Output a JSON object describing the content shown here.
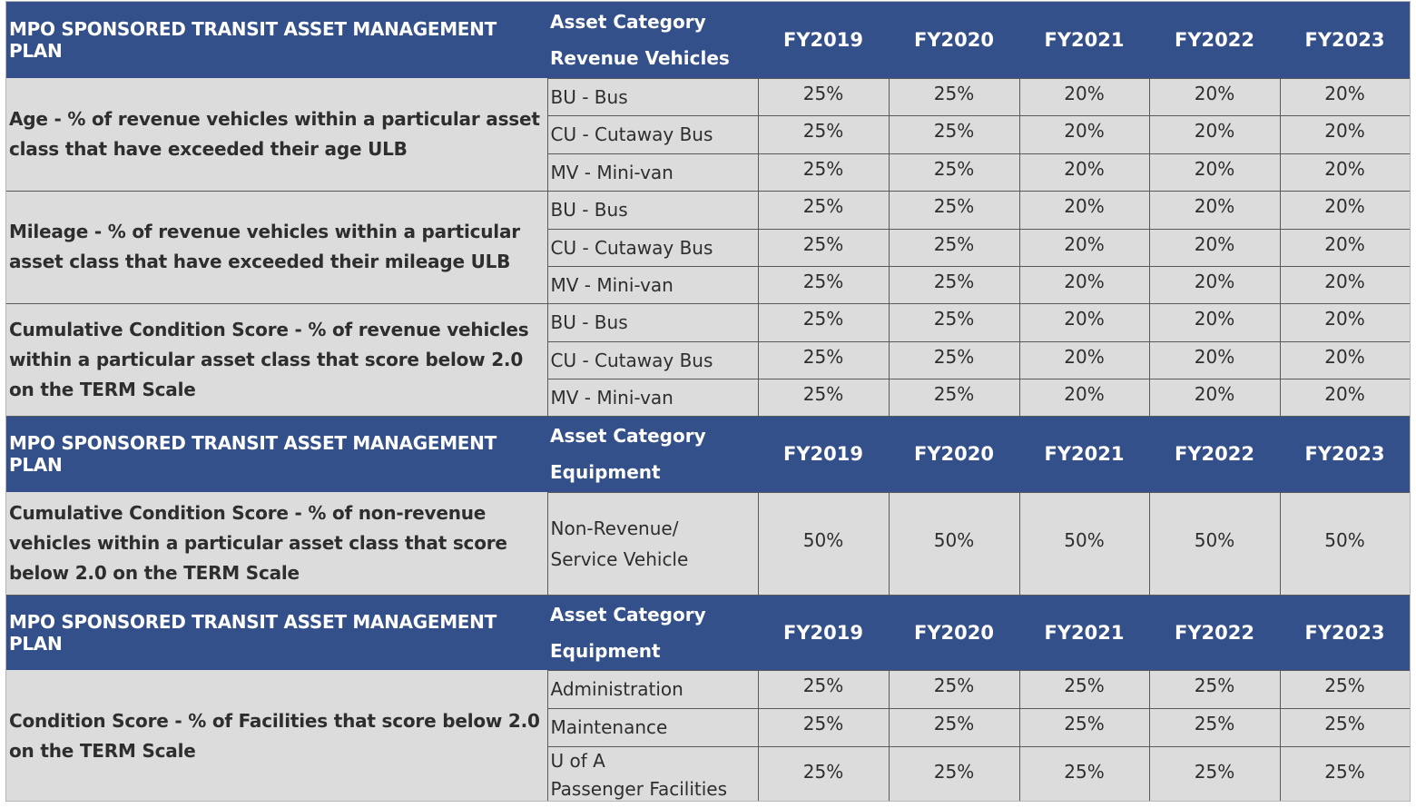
{
  "years": [
    "FY2019",
    "FY2020",
    "FY2021",
    "FY2022",
    "FY2023"
  ],
  "sections": [
    {
      "header": {
        "title": "MPO SPONSORED TRANSIT ASSET MANAGEMENT PLAN",
        "category_label": "Asset Category",
        "category_name": "Revenue Vehicles"
      },
      "groups": [
        {
          "metric": "Age - % of revenue vehicles within a particular asset class that have exceeded their age ULB",
          "rows": [
            {
              "label": "BU - Bus",
              "values": [
                "25%",
                "25%",
                "20%",
                "20%",
                "20%"
              ]
            },
            {
              "label": "CU - Cutaway Bus",
              "values": [
                "25%",
                "25%",
                "20%",
                "20%",
                "20%"
              ]
            },
            {
              "label": "MV - Mini-van",
              "values": [
                "25%",
                "25%",
                "20%",
                "20%",
                "20%"
              ]
            }
          ]
        },
        {
          "metric": "Mileage - % of revenue vehicles within a particular asset class that have exceeded their mileage ULB",
          "rows": [
            {
              "label": "BU - Bus",
              "values": [
                "25%",
                "25%",
                "20%",
                "20%",
                "20%"
              ]
            },
            {
              "label": "CU - Cutaway Bus",
              "values": [
                "25%",
                "25%",
                "20%",
                "20%",
                "20%"
              ]
            },
            {
              "label": "MV - Mini-van",
              "values": [
                "25%",
                "25%",
                "20%",
                "20%",
                "20%"
              ]
            }
          ]
        },
        {
          "metric": "Cumulative Condition Score - % of revenue vehicles within a particular asset class that score below 2.0 on the TERM Scale",
          "rows": [
            {
              "label": "BU - Bus",
              "values": [
                "25%",
                "25%",
                "20%",
                "20%",
                "20%"
              ]
            },
            {
              "label": "CU - Cutaway Bus",
              "values": [
                "25%",
                "25%",
                "20%",
                "20%",
                "20%"
              ]
            },
            {
              "label": "MV - Mini-van",
              "values": [
                "25%",
                "25%",
                "20%",
                "20%",
                "20%"
              ]
            }
          ]
        }
      ]
    },
    {
      "header": {
        "title": "MPO SPONSORED TRANSIT ASSET MANAGEMENT PLAN",
        "category_label": "Asset Category",
        "category_name": "Equipment"
      },
      "groups": [
        {
          "metric": "Cumulative Condition Score - % of non-revenue vehicles within a particular asset class that score below 2.0 on the TERM Scale",
          "rows": [
            {
              "label_line1": "Non-Revenue/",
              "label_line2": "Service Vehicle",
              "values": [
                "50%",
                "50%",
                "50%",
                "50%",
                "50%"
              ]
            }
          ]
        }
      ]
    },
    {
      "header": {
        "title": "MPO SPONSORED TRANSIT ASSET MANAGEMENT PLAN",
        "category_label": "Asset Category",
        "category_name": "Equipment"
      },
      "groups": [
        {
          "metric": "Condition Score - % of Facilities that score below 2.0 on the TERM Scale",
          "rows": [
            {
              "label": "Administration",
              "values": [
                "25%",
                "25%",
                "25%",
                "25%",
                "25%"
              ]
            },
            {
              "label": "Maintenance",
              "values": [
                "25%",
                "25%",
                "25%",
                "25%",
                "25%"
              ]
            },
            {
              "label_line1": "U of A",
              "label_line2": "Passenger Facilities",
              "values": [
                "25%",
                "25%",
                "25%",
                "25%",
                "25%"
              ]
            }
          ]
        }
      ]
    }
  ]
}
